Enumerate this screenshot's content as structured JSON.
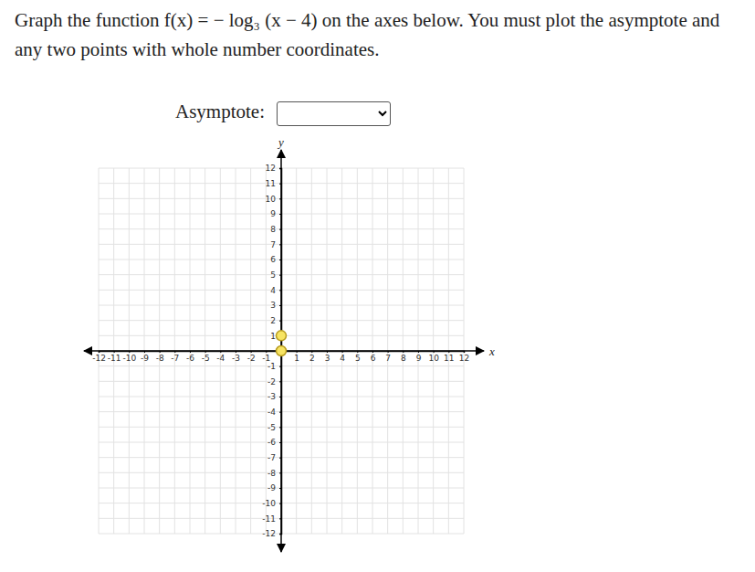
{
  "chart_data": {
    "type": "scatter",
    "title": "Graph the function f(x) = − log₃ (x − 4) on the axes below. You must plot the asymptote and any two points with whole number coordinates.",
    "annotations": [
      "Asymptote:"
    ],
    "x_label": "x",
    "y_label": "y",
    "xlim": [
      -12,
      12
    ],
    "ylim": [
      -12,
      12
    ],
    "xticks": [
      -12,
      -11,
      -10,
      -9,
      -8,
      -7,
      -6,
      -5,
      -4,
      -3,
      -2,
      -1,
      1,
      2,
      3,
      4,
      5,
      6,
      7,
      8,
      9,
      10,
      11,
      12
    ],
    "yticks": [
      -12,
      -11,
      -10,
      -9,
      -8,
      -7,
      -6,
      -5,
      -4,
      -3,
      -2,
      -1,
      1,
      2,
      3,
      4,
      5,
      6,
      7,
      8,
      9,
      10,
      11,
      12
    ],
    "grid": true,
    "series": [
      {
        "x": [
          0,
          0
        ],
        "values": [
          1,
          0
        ],
        "color": "#f7e463",
        "marker": "circle"
      }
    ]
  }
}
